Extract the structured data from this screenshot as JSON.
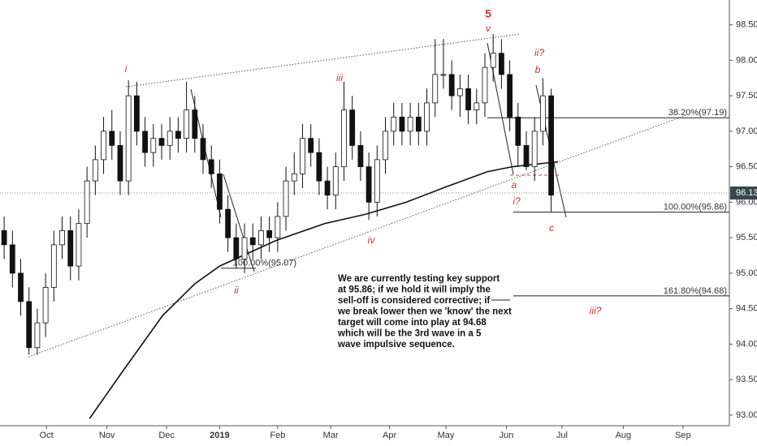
{
  "chart_data": {
    "type": "candlestick",
    "open": [
      95.6,
      95.4,
      95.0,
      94.6,
      93.95,
      94.3,
      94.8,
      95.4,
      95.6,
      95.1,
      95.7,
      96.3,
      96.6,
      97.0,
      96.8,
      96.3,
      97.5,
      97.0,
      96.7,
      96.9,
      96.8,
      97.0,
      96.9,
      97.3,
      96.9,
      96.6,
      96.4,
      95.9,
      95.5,
      95.2,
      95.5,
      95.4,
      95.6,
      95.5,
      95.8,
      96.3,
      96.4,
      96.9,
      96.7,
      96.3,
      96.1,
      96.5,
      97.3,
      96.8,
      96.5,
      96.0,
      96.6,
      97.0,
      97.2,
      97.0,
      97.2,
      97.0,
      97.4,
      97.8,
      97.8,
      97.5,
      97.6,
      97.3,
      97.4,
      97.9,
      98.1,
      97.8,
      97.2,
      96.8,
      96.5,
      97.0,
      97.5
    ],
    "high": [
      95.8,
      95.6,
      95.2,
      94.8,
      94.5,
      95.0,
      95.6,
      95.8,
      95.8,
      95.9,
      96.5,
      96.8,
      97.2,
      97.3,
      97.0,
      97.72,
      97.7,
      97.2,
      97.1,
      97.1,
      97.2,
      97.2,
      97.7,
      97.5,
      97.1,
      96.8,
      96.6,
      96.1,
      95.7,
      95.7,
      95.7,
      95.8,
      95.8,
      96.0,
      96.5,
      96.7,
      97.1,
      97.1,
      96.9,
      96.5,
      96.7,
      97.7,
      97.5,
      97.0,
      96.7,
      96.8,
      97.2,
      97.4,
      97.4,
      97.4,
      97.4,
      97.6,
      98.3,
      98.3,
      98.0,
      97.8,
      97.8,
      97.6,
      98.1,
      98.37,
      98.3,
      98.0,
      97.4,
      97.0,
      97.2,
      97.75,
      97.6
    ],
    "low": [
      95.2,
      94.8,
      94.4,
      93.85,
      93.85,
      94.1,
      94.6,
      95.2,
      94.9,
      94.9,
      95.5,
      96.1,
      96.4,
      96.6,
      96.1,
      96.1,
      96.8,
      96.5,
      96.5,
      96.6,
      96.6,
      96.7,
      96.7,
      96.7,
      96.4,
      96.2,
      95.7,
      95.3,
      95.07,
      95.0,
      95.2,
      95.2,
      95.3,
      95.3,
      95.6,
      96.1,
      96.2,
      96.5,
      96.1,
      95.9,
      95.9,
      96.3,
      96.6,
      96.3,
      95.75,
      95.8,
      96.4,
      96.8,
      96.8,
      96.8,
      96.8,
      96.8,
      97.2,
      97.6,
      97.3,
      97.2,
      97.1,
      97.1,
      97.2,
      97.7,
      97.6,
      97.0,
      96.5,
      96.45,
      96.3,
      96.8,
      95.86
    ],
    "close": [
      95.4,
      95.0,
      94.6,
      93.95,
      94.3,
      94.8,
      95.4,
      95.6,
      95.1,
      95.7,
      96.3,
      96.6,
      97.0,
      96.8,
      96.3,
      97.5,
      97.0,
      96.7,
      96.9,
      96.8,
      97.0,
      96.9,
      97.3,
      96.9,
      96.6,
      96.4,
      95.9,
      95.5,
      95.2,
      95.5,
      95.4,
      95.6,
      95.5,
      95.8,
      96.3,
      96.4,
      96.9,
      96.7,
      96.3,
      96.1,
      96.5,
      97.3,
      96.8,
      96.5,
      96.0,
      96.6,
      97.0,
      97.2,
      97.0,
      97.2,
      97.0,
      97.4,
      97.8,
      97.8,
      97.5,
      97.6,
      97.3,
      97.4,
      97.9,
      98.1,
      97.8,
      97.2,
      96.8,
      96.5,
      97.0,
      97.5,
      96.1
    ],
    "moving_average": {
      "x": [
        10.3,
        14.2,
        19.1,
        23,
        26,
        32.8,
        38.7,
        43.6,
        48.5,
        53.4,
        58.3,
        61.3,
        66.8
      ],
      "values": [
        92.95,
        93.6,
        94.4,
        94.85,
        95.1,
        95.46,
        95.7,
        95.83,
        96.0,
        96.22,
        96.43,
        96.5,
        96.57
      ]
    },
    "xlim": [
      -0.5,
      87.5
    ],
    "ylim": [
      92.85,
      98.85
    ],
    "xticks": [
      {
        "value": 5.1,
        "label": "Oct"
      },
      {
        "value": 12.4,
        "label": "Nov"
      },
      {
        "value": 19.6,
        "label": "Dec"
      },
      {
        "value": 26.0,
        "label": "2019"
      },
      {
        "value": 33.0,
        "label": "Feb"
      },
      {
        "value": 39.4,
        "label": "Mar"
      },
      {
        "value": 46.5,
        "label": "Apr"
      },
      {
        "value": 53.3,
        "label": "May"
      },
      {
        "value": 60.6,
        "label": "Jun"
      },
      {
        "value": 67.3,
        "label": "Jul"
      },
      {
        "value": 74.7,
        "label": "Aug"
      },
      {
        "value": 81.9,
        "label": "Sep"
      }
    ],
    "yticks": [
      {
        "value": 93,
        "label": "93.00"
      },
      {
        "value": 93.5,
        "label": "93.50"
      },
      {
        "value": 94,
        "label": "94.00"
      },
      {
        "value": 94.5,
        "label": "94.50"
      },
      {
        "value": 95,
        "label": "95.00"
      },
      {
        "value": 95.5,
        "label": "95.50"
      },
      {
        "value": 96,
        "label": "96.00"
      },
      {
        "value": 96.5,
        "label": "96.50"
      },
      {
        "value": 97,
        "label": "97.00"
      },
      {
        "value": 97.5,
        "label": "97.50"
      },
      {
        "value": 98,
        "label": "98.00"
      },
      {
        "value": 98.5,
        "label": "98.50"
      }
    ],
    "last_price": {
      "value": 96.13,
      "label": "96.13"
    },
    "fib_levels": [
      {
        "value": 97.19,
        "label": "38.20%(97.19)"
      },
      {
        "value": 95.86,
        "label": "100.00%(95.86)"
      },
      {
        "value": 94.68,
        "label": "161.80%(94.68)"
      },
      {
        "value": 95.07,
        "label": "100.00%(95.07)"
      }
    ],
    "wave_labels": [
      "5",
      "v",
      "i",
      "iii",
      "ii?",
      "b",
      "a",
      "i?",
      "c",
      "iv",
      "ii",
      "iii?"
    ],
    "annotation": [
      "We are currently testing key support",
      "at 95.86; if we hold it will imply the",
      "sell-off is considered corrective; if",
      "we break lower then we 'know' the next",
      "target will come into play at 94.68",
      "which will be the 3rd wave in a 5",
      "wave impulsive sequence."
    ]
  }
}
